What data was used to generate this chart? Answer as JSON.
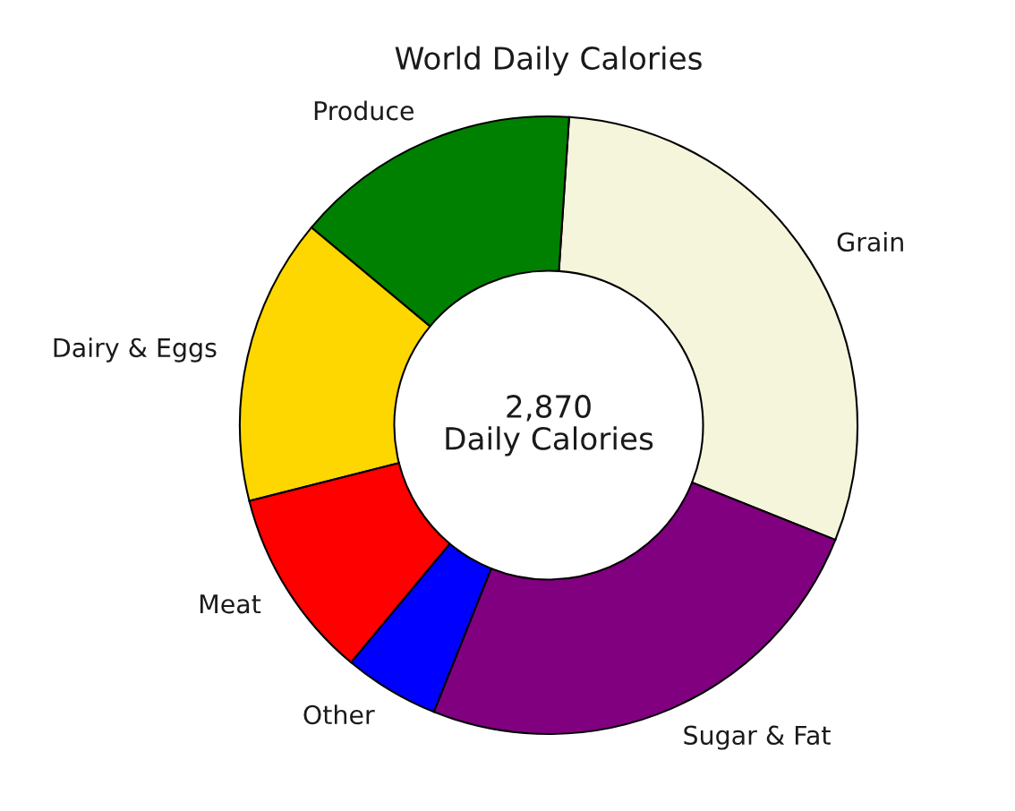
{
  "chart_data": {
    "type": "donut",
    "title": "World Daily Calories",
    "categories": [
      "Grain",
      "Produce",
      "Dairy & Eggs",
      "Meat",
      "Other",
      "Sugar & Fat"
    ],
    "values": [
      30,
      15,
      15,
      10,
      5,
      25
    ],
    "colors": [
      "#f5f5dc",
      "#008000",
      "#ffd700",
      "#ff0000",
      "#0000ff",
      "#800080"
    ],
    "annotations": [
      "2,870\nDaily Calories"
    ]
  }
}
